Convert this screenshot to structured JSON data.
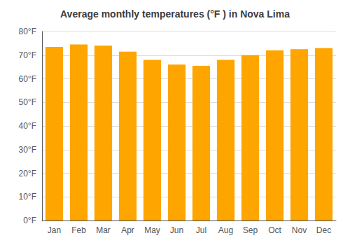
{
  "chart_data": {
    "type": "bar",
    "title": "Average monthly temperatures (°F ) in Nova Lima",
    "categories": [
      "Jan",
      "Feb",
      "Mar",
      "Apr",
      "May",
      "Jun",
      "Jul",
      "Aug",
      "Sep",
      "Oct",
      "Nov",
      "Dec"
    ],
    "values": [
      73.5,
      74.5,
      74.0,
      71.5,
      68.0,
      66.0,
      65.5,
      68.0,
      70.0,
      72.0,
      72.5,
      73.0
    ],
    "color": "#FFA500",
    "ylim": [
      0,
      80
    ],
    "yticks": [
      {
        "value": 0,
        "label": "0°F"
      },
      {
        "value": 10,
        "label": "10°F"
      },
      {
        "value": 20,
        "label": "20°F"
      },
      {
        "value": 30,
        "label": "30°F"
      },
      {
        "value": 40,
        "label": "40°F"
      },
      {
        "value": 50,
        "label": "50°F"
      },
      {
        "value": 60,
        "label": "60°F"
      },
      {
        "value": 70,
        "label": "70°F"
      },
      {
        "value": 80,
        "label": "80°F"
      }
    ],
    "grid": true
  }
}
